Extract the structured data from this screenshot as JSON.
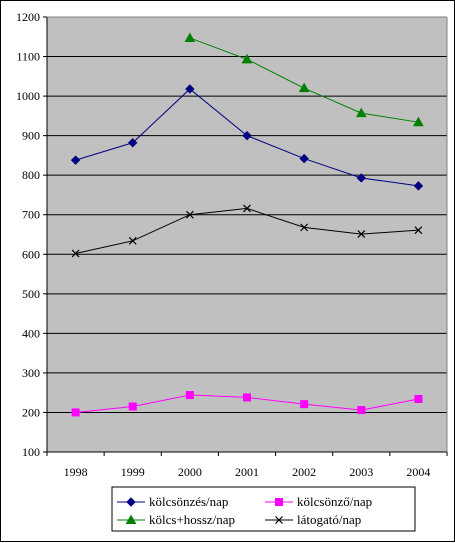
{
  "chart_data": {
    "type": "line",
    "categories": [
      "1998",
      "1999",
      "2000",
      "2001",
      "2002",
      "2003",
      "2004"
    ],
    "ylim": [
      100,
      1200
    ],
    "ytick_step": 100,
    "grid": "horizontal",
    "plot_background": "#c0c0c0",
    "legend_position": "bottom",
    "series": [
      {
        "name": "kölcsönzés/nap",
        "color": "#000080",
        "marker": "diamond",
        "values": [
          838,
          882,
          1018,
          900,
          842,
          793,
          773
        ]
      },
      {
        "name": "kölcsönző/nap",
        "color": "#ff00ff",
        "marker": "square",
        "values": [
          200,
          215,
          244,
          238,
          221,
          206,
          234
        ]
      },
      {
        "name": "kölcs+hossz/nap",
        "color": "#008000",
        "marker": "triangle",
        "values": [
          null,
          null,
          1147,
          1093,
          1020,
          957,
          934
        ]
      },
      {
        "name": "látogató/nap",
        "color": "#000000",
        "marker": "x",
        "values": [
          602,
          634,
          700,
          716,
          668,
          651,
          661
        ]
      }
    ]
  }
}
